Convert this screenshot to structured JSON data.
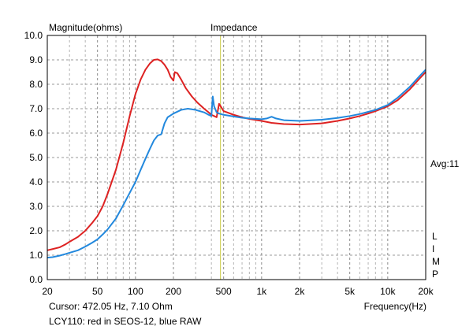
{
  "chart_data": {
    "type": "line",
    "title": "Impedance",
    "ylabel": "Magnitude(ohms)",
    "xlabel": "Frequency(Hz)",
    "x_scale": "log",
    "xlim": [
      20,
      20000
    ],
    "ylim": [
      0,
      10
    ],
    "grid": true,
    "y_ticks": [
      "0.0",
      "1.0",
      "2.0",
      "3.0",
      "4.0",
      "5.0",
      "6.0",
      "7.0",
      "8.0",
      "9.0",
      "10.0"
    ],
    "x_ticks": [
      {
        "value": 20,
        "label": "20"
      },
      {
        "value": 50,
        "label": "50"
      },
      {
        "value": 100,
        "label": "100"
      },
      {
        "value": 200,
        "label": "200"
      },
      {
        "value": 500,
        "label": "500"
      },
      {
        "value": 1000,
        "label": "1k"
      },
      {
        "value": 2000,
        "label": "2k"
      },
      {
        "value": 5000,
        "label": "5k"
      },
      {
        "value": 10000,
        "label": "10k"
      },
      {
        "value": 20000,
        "label": "20k"
      }
    ],
    "cursor": {
      "frequency": 472.05,
      "ohms": 7.1,
      "color": "#c8c840"
    },
    "cursor_text": "Cursor: 472.05 Hz, 7.10 Ohm",
    "caption": "LCY110: red in SEOS-12, blue RAW",
    "avg_text": "Avg:11",
    "limp_letters": [
      "L",
      "I",
      "M",
      "P"
    ],
    "series": [
      {
        "color": "#dd2222",
        "points": [
          [
            20,
            1.2
          ],
          [
            22,
            1.25
          ],
          [
            25,
            1.32
          ],
          [
            28,
            1.45
          ],
          [
            30,
            1.55
          ],
          [
            35,
            1.75
          ],
          [
            40,
            2.0
          ],
          [
            45,
            2.3
          ],
          [
            50,
            2.6
          ],
          [
            55,
            3.0
          ],
          [
            60,
            3.5
          ],
          [
            70,
            4.5
          ],
          [
            80,
            5.6
          ],
          [
            90,
            6.7
          ],
          [
            100,
            7.6
          ],
          [
            110,
            8.2
          ],
          [
            120,
            8.6
          ],
          [
            130,
            8.85
          ],
          [
            140,
            9.0
          ],
          [
            150,
            9.02
          ],
          [
            160,
            8.95
          ],
          [
            170,
            8.8
          ],
          [
            180,
            8.6
          ],
          [
            190,
            8.3
          ],
          [
            200,
            8.15
          ],
          [
            205,
            8.5
          ],
          [
            215,
            8.45
          ],
          [
            230,
            8.2
          ],
          [
            250,
            7.85
          ],
          [
            280,
            7.5
          ],
          [
            310,
            7.25
          ],
          [
            350,
            7.0
          ],
          [
            380,
            6.85
          ],
          [
            400,
            6.75
          ],
          [
            420,
            6.7
          ],
          [
            440,
            6.65
          ],
          [
            460,
            7.2
          ],
          [
            480,
            7.05
          ],
          [
            500,
            6.9
          ],
          [
            600,
            6.75
          ],
          [
            700,
            6.65
          ],
          [
            800,
            6.58
          ],
          [
            1000,
            6.5
          ],
          [
            1200,
            6.42
          ],
          [
            1500,
            6.37
          ],
          [
            2000,
            6.35
          ],
          [
            3000,
            6.4
          ],
          [
            4000,
            6.5
          ],
          [
            5000,
            6.6
          ],
          [
            6000,
            6.7
          ],
          [
            7000,
            6.8
          ],
          [
            8000,
            6.9
          ],
          [
            10000,
            7.1
          ],
          [
            12000,
            7.35
          ],
          [
            15000,
            7.8
          ],
          [
            18000,
            8.25
          ],
          [
            20000,
            8.5
          ]
        ]
      },
      {
        "color": "#2288dd",
        "points": [
          [
            20,
            0.9
          ],
          [
            22,
            0.92
          ],
          [
            25,
            0.98
          ],
          [
            28,
            1.05
          ],
          [
            30,
            1.1
          ],
          [
            35,
            1.2
          ],
          [
            40,
            1.35
          ],
          [
            45,
            1.5
          ],
          [
            50,
            1.65
          ],
          [
            55,
            1.85
          ],
          [
            60,
            2.05
          ],
          [
            70,
            2.5
          ],
          [
            80,
            3.05
          ],
          [
            90,
            3.55
          ],
          [
            100,
            4.0
          ],
          [
            110,
            4.5
          ],
          [
            120,
            4.95
          ],
          [
            130,
            5.35
          ],
          [
            140,
            5.7
          ],
          [
            150,
            5.9
          ],
          [
            160,
            5.95
          ],
          [
            170,
            6.4
          ],
          [
            180,
            6.65
          ],
          [
            200,
            6.8
          ],
          [
            230,
            6.95
          ],
          [
            260,
            7.0
          ],
          [
            300,
            6.95
          ],
          [
            350,
            6.85
          ],
          [
            380,
            6.75
          ],
          [
            400,
            6.7
          ],
          [
            410,
            7.5
          ],
          [
            420,
            7.1
          ],
          [
            440,
            6.85
          ],
          [
            460,
            6.8
          ],
          [
            500,
            6.75
          ],
          [
            600,
            6.68
          ],
          [
            700,
            6.63
          ],
          [
            800,
            6.6
          ],
          [
            1000,
            6.57
          ],
          [
            1100,
            6.6
          ],
          [
            1200,
            6.67
          ],
          [
            1300,
            6.6
          ],
          [
            1500,
            6.53
          ],
          [
            2000,
            6.5
          ],
          [
            3000,
            6.55
          ],
          [
            4000,
            6.62
          ],
          [
            5000,
            6.7
          ],
          [
            6000,
            6.78
          ],
          [
            7000,
            6.87
          ],
          [
            8000,
            6.95
          ],
          [
            10000,
            7.15
          ],
          [
            12000,
            7.45
          ],
          [
            15000,
            7.9
          ],
          [
            18000,
            8.35
          ],
          [
            20000,
            8.6
          ]
        ]
      }
    ]
  }
}
